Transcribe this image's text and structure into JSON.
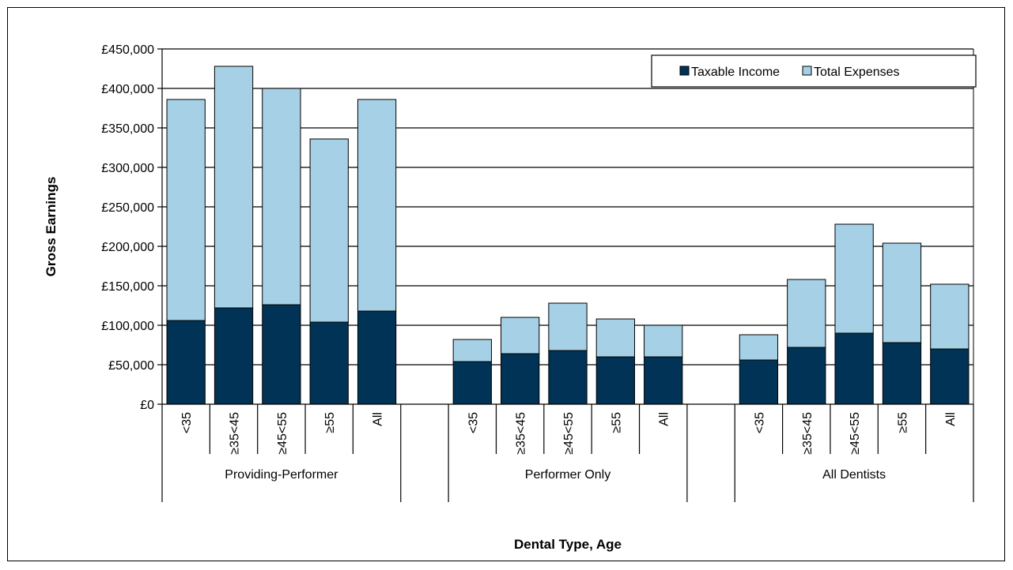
{
  "chart_data": {
    "type": "bar",
    "stacked": true,
    "groups": [
      {
        "label": "Providing-Performer",
        "categories": [
          "<35",
          "≥35<45",
          "≥45<55",
          "≥55",
          "All"
        ]
      },
      {
        "label": "Performer Only",
        "categories": [
          "<35",
          "≥35<45",
          "≥45<55",
          "≥55",
          "All"
        ]
      },
      {
        "label": "All Dentists",
        "categories": [
          "<35",
          "≥35<45",
          "≥45<55",
          "≥55",
          "All"
        ]
      }
    ],
    "series": [
      {
        "name": "Taxable Income",
        "color": "#003355",
        "values": [
          106000,
          122000,
          126000,
          104000,
          118000,
          54000,
          64000,
          68000,
          60000,
          60000,
          56000,
          72000,
          90000,
          78000,
          70000
        ]
      },
      {
        "name": "Total Expenses",
        "color": "#a6d0e6",
        "values": [
          280000,
          306000,
          274000,
          232000,
          268000,
          28000,
          46000,
          60000,
          48000,
          40000,
          32000,
          86000,
          138000,
          126000,
          82000
        ]
      }
    ],
    "xlabel": "Dental Type, Age",
    "ylabel": "Gross Earnings",
    "ylim": [
      0,
      450000
    ],
    "yticks": [
      0,
      50000,
      100000,
      150000,
      200000,
      250000,
      300000,
      350000,
      400000,
      450000
    ],
    "ytick_labels": [
      "£0",
      "£50,000",
      "£100,000",
      "£150,000",
      "£200,000",
      "£250,000",
      "£300,000",
      "£350,000",
      "£400,000",
      "£450,000"
    ],
    "grid": true,
    "legend_position": "top-right"
  }
}
